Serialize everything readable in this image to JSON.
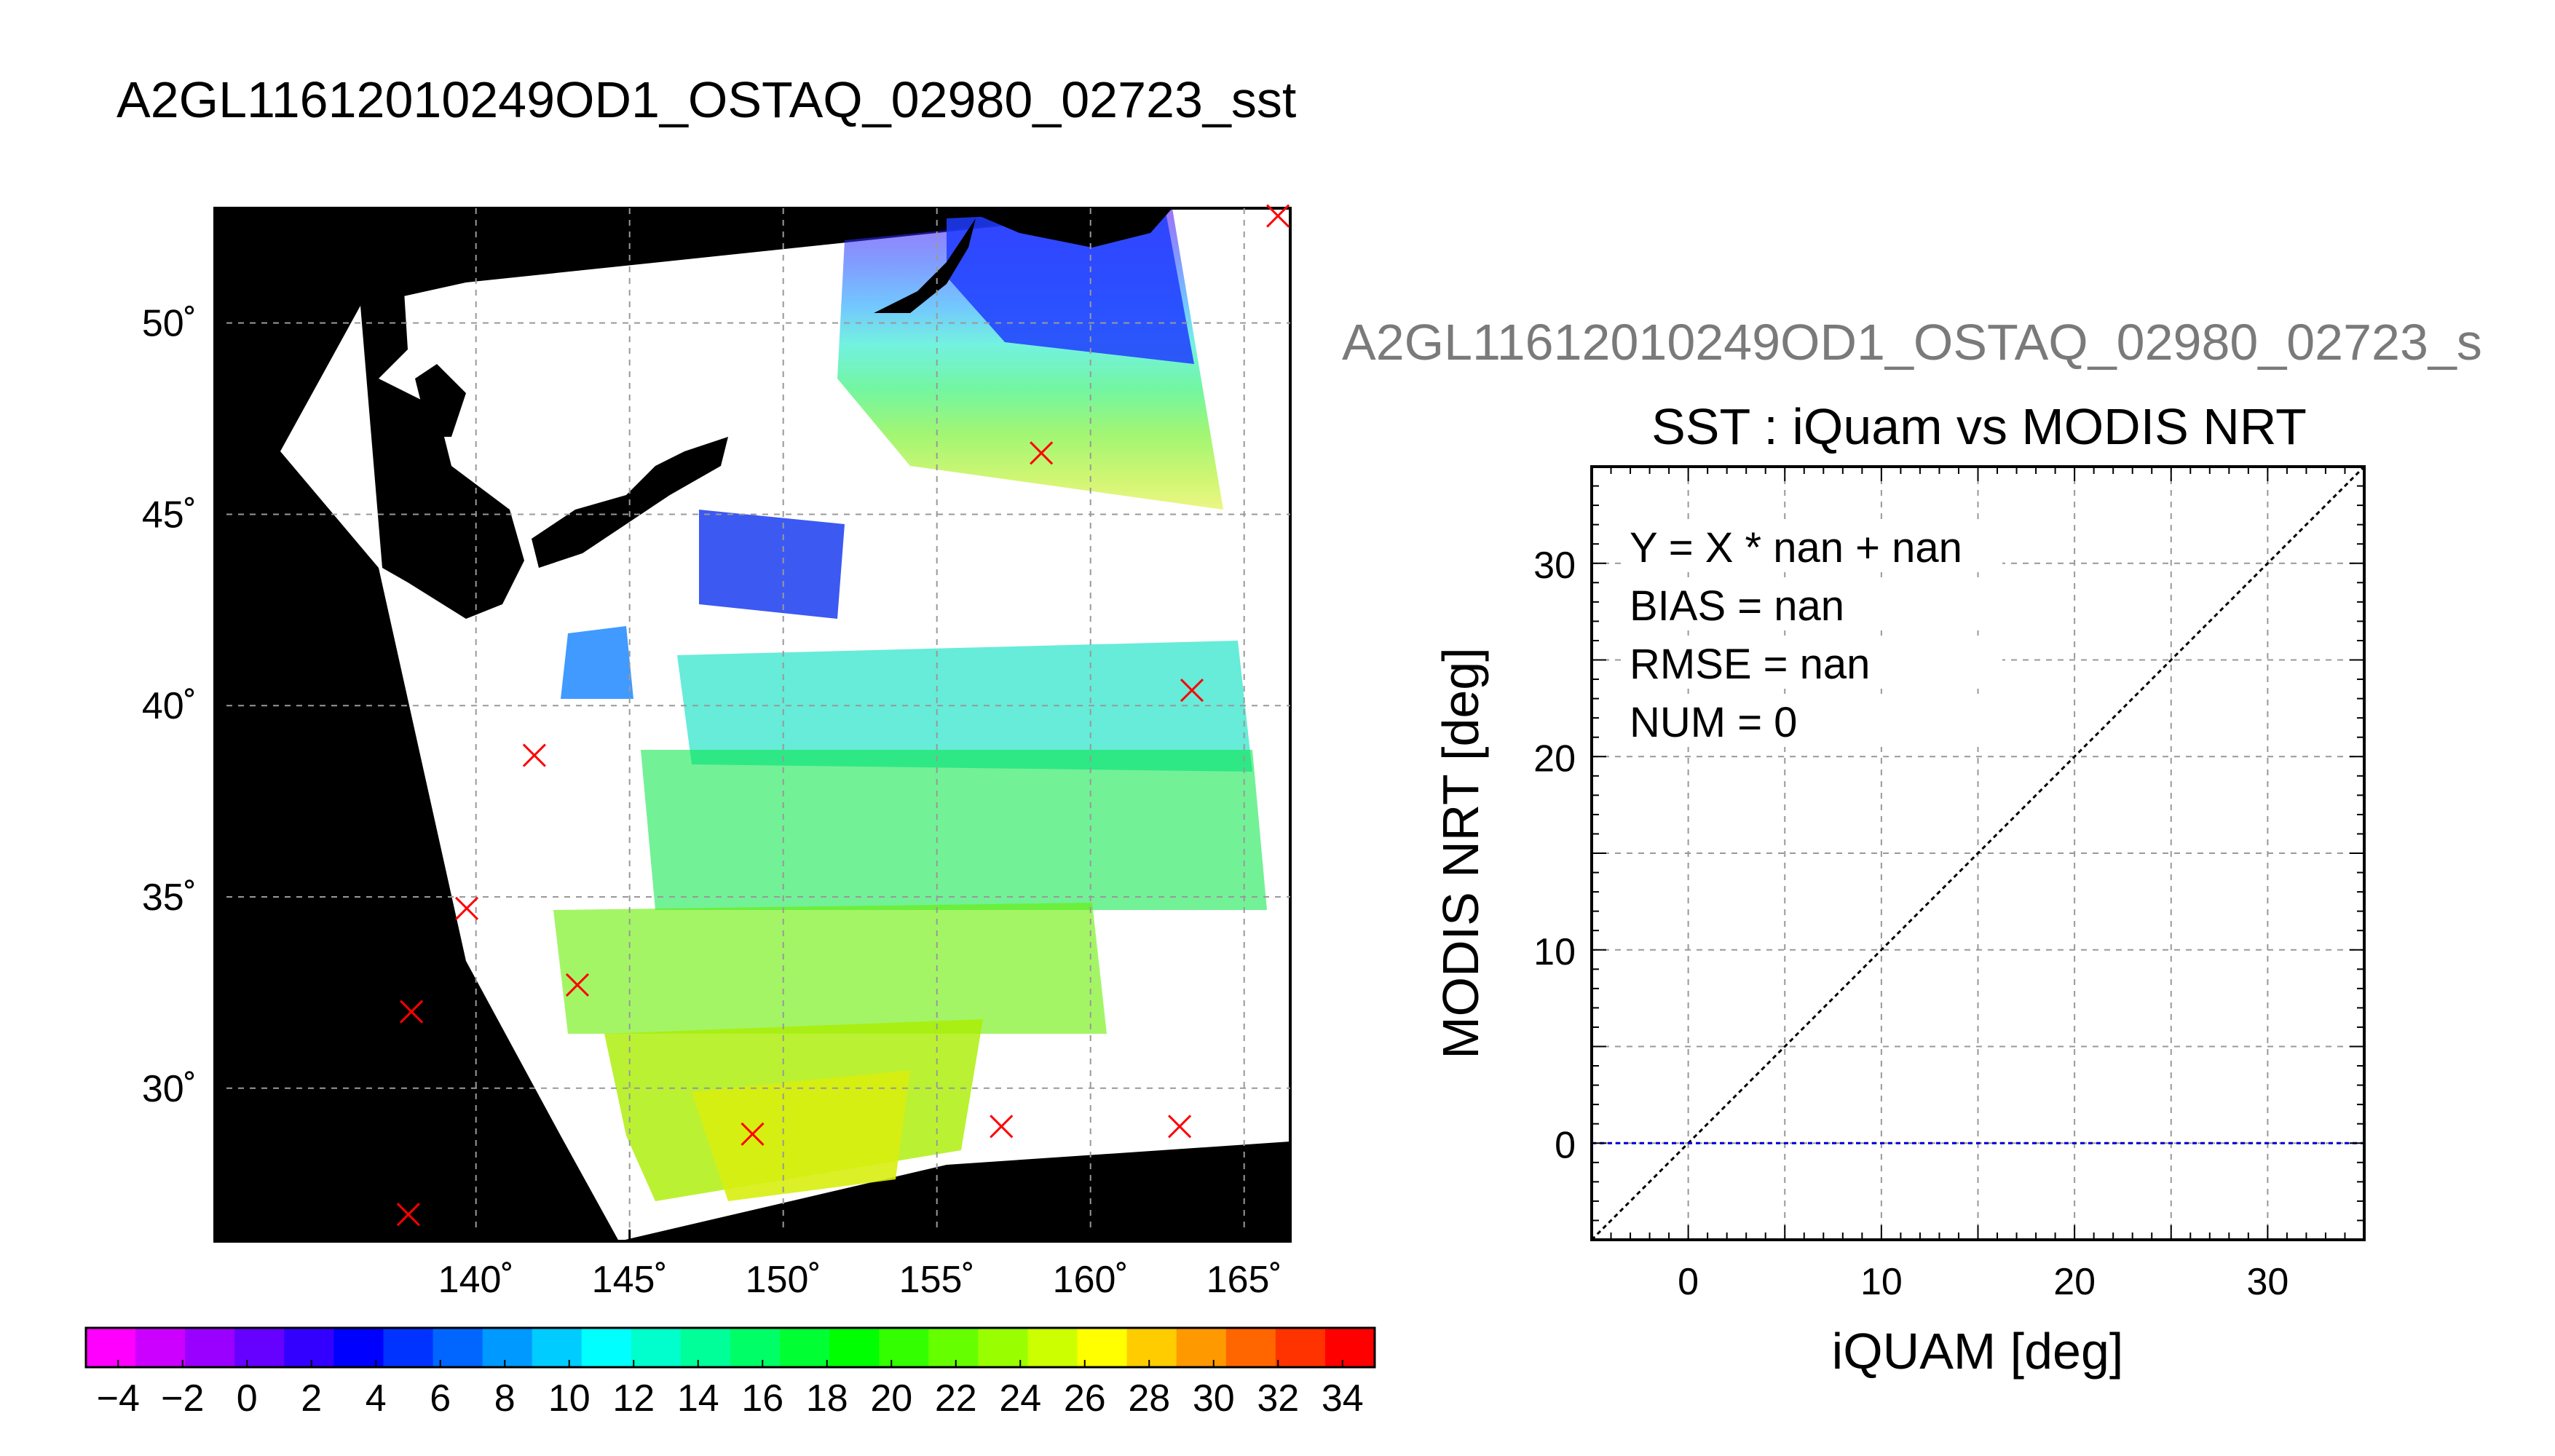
{
  "title": "A2GL11612010249OD1_OSTAQ_02980_02723_sst",
  "scatter_supertitle": "A2GL11612010249OD1_OSTAQ_02980_02723_s",
  "colors": {
    "land": "#000000",
    "grid": "#999999",
    "marker": "#ff0000",
    "zero_line": "#0000cc",
    "identity_line": "#000000"
  },
  "chart_data": [
    {
      "type": "heatmap",
      "xlim": [
        131.5,
        166.5
      ],
      "ylim": [
        26,
        53
      ],
      "x_ticks": [
        140,
        145,
        150,
        155,
        160,
        165
      ],
      "x_tick_labels": [
        "140˚",
        "145˚",
        "150˚",
        "155˚",
        "160˚",
        "165˚"
      ],
      "y_ticks": [
        30,
        35,
        40,
        45,
        50
      ],
      "y_tick_labels": [
        "30˚",
        "35˚",
        "40˚",
        "45˚",
        "50˚"
      ],
      "grid": true,
      "markers": [
        {
          "lon": 166.1,
          "lat": 52.8
        },
        {
          "lon": 158.4,
          "lat": 46.6
        },
        {
          "lon": 163.3,
          "lat": 40.4
        },
        {
          "lon": 141.9,
          "lat": 38.7
        },
        {
          "lon": 139.7,
          "lat": 34.7
        },
        {
          "lon": 143.3,
          "lat": 32.7
        },
        {
          "lon": 137.9,
          "lat": 32.0
        },
        {
          "lon": 149.0,
          "lat": 28.8
        },
        {
          "lon": 157.1,
          "lat": 29.0
        },
        {
          "lon": 162.9,
          "lat": 29.0
        },
        {
          "lon": 137.8,
          "lat": 26.7
        }
      ],
      "colorbar": {
        "min": -5,
        "max": 35,
        "tick_labels": [
          "−4",
          "−2",
          "0",
          "2",
          "4",
          "6",
          "8",
          "10",
          "12",
          "14",
          "16",
          "18",
          "20",
          "22",
          "24",
          "26",
          "28",
          "30",
          "32",
          "34"
        ],
        "colors": [
          "#ff00ff",
          "#cc00ff",
          "#9900ff",
          "#6600ff",
          "#3300ff",
          "#0000ff",
          "#0033ff",
          "#0066ff",
          "#0099ff",
          "#00ccff",
          "#00ffff",
          "#00ffcc",
          "#00ff99",
          "#00ff66",
          "#00ff33",
          "#00ff00",
          "#33ff00",
          "#66ff00",
          "#99ff00",
          "#ccff00",
          "#ffff00",
          "#ffcc00",
          "#ff9900",
          "#ff6600",
          "#ff3300",
          "#ff0000"
        ]
      }
    },
    {
      "type": "scatter",
      "title": "SST : iQuam vs MODIS NRT",
      "xlabel": "iQUAM [deg]",
      "ylabel": "MODIS NRT [deg]",
      "xlim": [
        -5,
        35
      ],
      "ylim": [
        -5,
        35
      ],
      "x_ticks": [
        0,
        10,
        20,
        30
      ],
      "y_ticks": [
        0,
        10,
        20,
        30
      ],
      "grid": true,
      "points": [],
      "identity_line": true,
      "zero_line": 0,
      "stats": [
        "Y = X * nan + nan",
        "BIAS = nan",
        "RMSE = nan",
        "NUM = 0"
      ]
    }
  ]
}
